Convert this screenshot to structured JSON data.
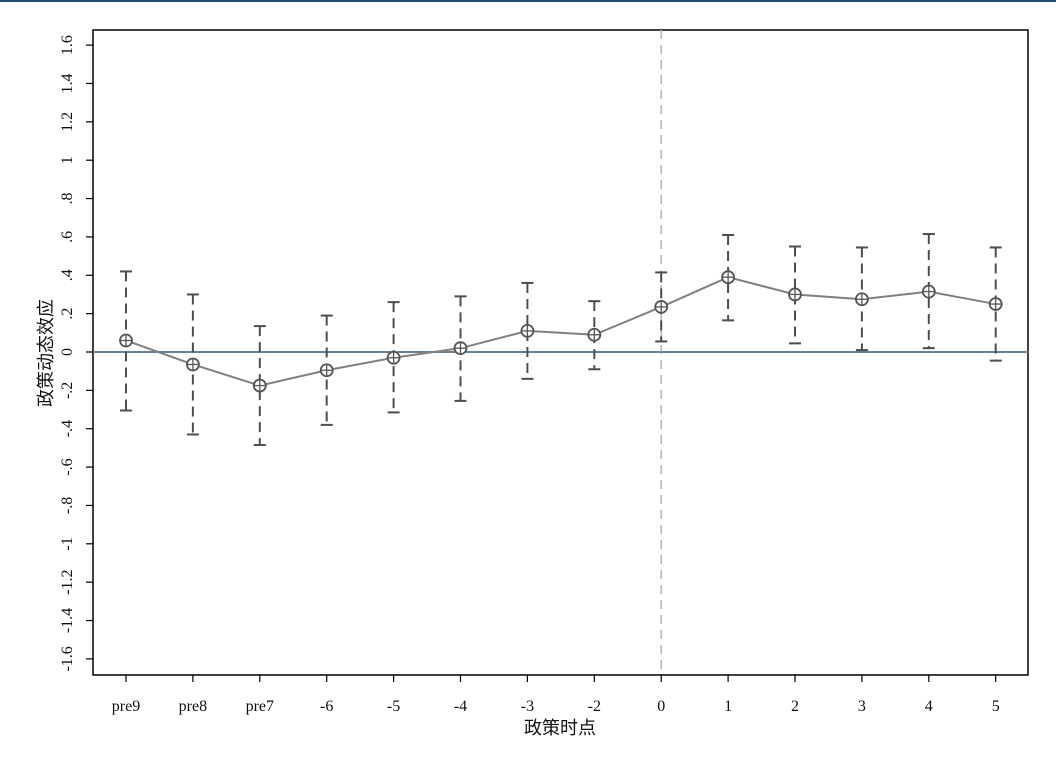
{
  "chart_data": {
    "type": "line",
    "title": "",
    "xlabel": "政策时点",
    "ylabel": "政策动态效应",
    "categories": [
      "pre9",
      "pre8",
      "pre7",
      "-6",
      "-5",
      "-4",
      "-3",
      "-2",
      "0",
      "1",
      "2",
      "3",
      "4",
      "5"
    ],
    "series": [
      {
        "values": [
          0.06,
          -0.065,
          -0.175,
          -0.095,
          -0.03,
          0.02,
          0.11,
          0.09,
          0.235,
          0.39,
          0.3,
          0.275,
          0.315,
          0.25
        ],
        "ci_lower": [
          -0.305,
          -0.43,
          -0.485,
          -0.38,
          -0.315,
          -0.255,
          -0.14,
          -0.09,
          0.055,
          0.165,
          0.045,
          0.01,
          0.02,
          -0.045
        ],
        "ci_upper": [
          0.42,
          0.3,
          0.135,
          0.19,
          0.26,
          0.29,
          0.36,
          0.265,
          0.415,
          0.61,
          0.55,
          0.545,
          0.615,
          0.545
        ]
      }
    ],
    "yticks": [
      "-1.6",
      "-1.4",
      "-1.2",
      "-1",
      "-.8",
      "-.6",
      "-.4",
      "-.2",
      "0",
      ".2",
      ".4",
      ".6",
      ".8",
      "1",
      "1.2",
      "1.4",
      "1.6"
    ],
    "ytick_values": [
      -1.6,
      -1.4,
      -1.2,
      -1,
      -0.8,
      -0.6,
      -0.4,
      -0.2,
      0,
      0.2,
      0.4,
      0.6,
      0.8,
      1,
      1.2,
      1.4,
      1.6
    ],
    "ylim": [
      -1.7,
      1.7
    ],
    "reference_lines": {
      "horizontal_y": 0,
      "vertical_category": "0"
    },
    "colors": {
      "line": "#808080",
      "ci": "#4d4d4d",
      "zero_line": "#6b8294",
      "event_line": "#a9b7b7",
      "frame": "#000000"
    },
    "grid": false,
    "legend": "none"
  }
}
